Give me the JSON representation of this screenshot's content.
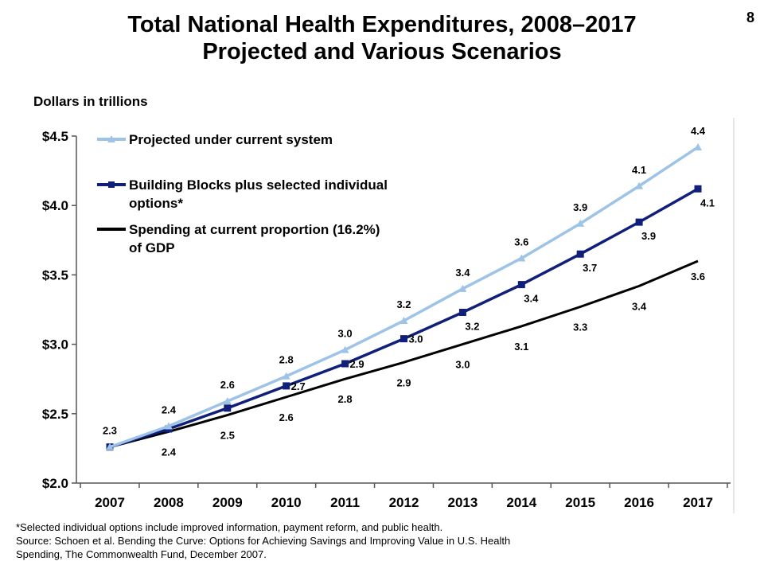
{
  "slide": {
    "title_line1": "Total National Health Expenditures, 2008–2017",
    "title_line2": "Projected and Various Scenarios",
    "page_number": "8",
    "units_label": "Dollars in trillions",
    "footnote_line1": "*Selected individual options include improved information, payment reform, and public health.",
    "footnote_line2": "Source: Schoen et al. Bending the Curve: Options for Achieving Savings and Improving Value in U.S. Health",
    "footnote_line3": "Spending, The Commonwealth Fund, December 2007."
  },
  "chart_data": {
    "type": "line",
    "x": [
      "2007",
      "2008",
      "2009",
      "2010",
      "2011",
      "2012",
      "2013",
      "2014",
      "2015",
      "2016",
      "2017"
    ],
    "ylim": [
      2.0,
      4.5
    ],
    "yticks": [
      2.0,
      2.5,
      3.0,
      3.5,
      4.0,
      4.5
    ],
    "ytick_labels": [
      "$2.0",
      "$2.5",
      "$3.0",
      "$3.5",
      "$4.0",
      "$4.5"
    ],
    "grid": false,
    "legend_position": "top-left",
    "series": [
      {
        "name": "Projected under current system",
        "color": "#9dc3e6",
        "marker": "triangle",
        "values": [
          2.26,
          2.41,
          2.59,
          2.77,
          2.96,
          3.17,
          3.4,
          3.62,
          3.87,
          4.14,
          4.42
        ],
        "labels": [
          "2.3",
          "2.4",
          "2.6",
          "2.8",
          "3.0",
          "3.2",
          "3.4",
          "3.6",
          "3.9",
          "4.1",
          "4.4"
        ]
      },
      {
        "name_line1": "Building Blocks plus selected individual",
        "name_line2": "options*",
        "color": "#0f1f7a",
        "marker": "square",
        "values": [
          2.26,
          2.39,
          2.54,
          2.7,
          2.86,
          3.04,
          3.23,
          3.43,
          3.65,
          3.88,
          4.12
        ],
        "labels": [
          "",
          "",
          "",
          "2.7",
          "2.9",
          "3.0",
          "3.2",
          "3.4",
          "3.7",
          "3.9",
          "4.1"
        ]
      },
      {
        "name_line1": "Spending at current proportion (16.2%)",
        "name_line2": "of GDP",
        "color": "#000000",
        "marker": "none",
        "values": [
          2.26,
          2.37,
          2.49,
          2.62,
          2.75,
          2.87,
          3.0,
          3.13,
          3.27,
          3.42,
          3.6
        ],
        "labels": [
          "",
          "2.4",
          "2.5",
          "2.6",
          "2.8",
          "2.9",
          "3.0",
          "3.1",
          "3.3",
          "3.4",
          "3.6"
        ]
      }
    ]
  }
}
